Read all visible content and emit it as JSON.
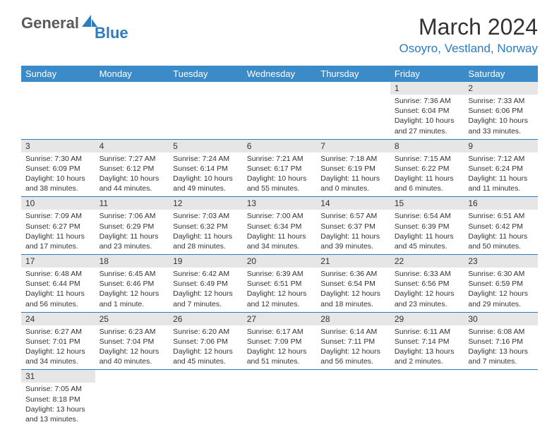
{
  "brand": {
    "general": "General",
    "blue": "Blue"
  },
  "title": "March 2024",
  "location": "Osoyro, Vestland, Norway",
  "colors": {
    "header_bg": "#3b8bc9",
    "accent": "#2d7bc0",
    "daynum_bg": "#e6e6e6",
    "text": "#333333",
    "logo_gray": "#5a5a5a"
  },
  "weekdays": [
    "Sunday",
    "Monday",
    "Tuesday",
    "Wednesday",
    "Thursday",
    "Friday",
    "Saturday"
  ],
  "weeks": [
    [
      null,
      null,
      null,
      null,
      null,
      {
        "n": "1",
        "sr": "Sunrise: 7:36 AM",
        "ss": "Sunset: 6:04 PM",
        "d1": "Daylight: 10 hours",
        "d2": "and 27 minutes."
      },
      {
        "n": "2",
        "sr": "Sunrise: 7:33 AM",
        "ss": "Sunset: 6:06 PM",
        "d1": "Daylight: 10 hours",
        "d2": "and 33 minutes."
      }
    ],
    [
      {
        "n": "3",
        "sr": "Sunrise: 7:30 AM",
        "ss": "Sunset: 6:09 PM",
        "d1": "Daylight: 10 hours",
        "d2": "and 38 minutes."
      },
      {
        "n": "4",
        "sr": "Sunrise: 7:27 AM",
        "ss": "Sunset: 6:12 PM",
        "d1": "Daylight: 10 hours",
        "d2": "and 44 minutes."
      },
      {
        "n": "5",
        "sr": "Sunrise: 7:24 AM",
        "ss": "Sunset: 6:14 PM",
        "d1": "Daylight: 10 hours",
        "d2": "and 49 minutes."
      },
      {
        "n": "6",
        "sr": "Sunrise: 7:21 AM",
        "ss": "Sunset: 6:17 PM",
        "d1": "Daylight: 10 hours",
        "d2": "and 55 minutes."
      },
      {
        "n": "7",
        "sr": "Sunrise: 7:18 AM",
        "ss": "Sunset: 6:19 PM",
        "d1": "Daylight: 11 hours",
        "d2": "and 0 minutes."
      },
      {
        "n": "8",
        "sr": "Sunrise: 7:15 AM",
        "ss": "Sunset: 6:22 PM",
        "d1": "Daylight: 11 hours",
        "d2": "and 6 minutes."
      },
      {
        "n": "9",
        "sr": "Sunrise: 7:12 AM",
        "ss": "Sunset: 6:24 PM",
        "d1": "Daylight: 11 hours",
        "d2": "and 11 minutes."
      }
    ],
    [
      {
        "n": "10",
        "sr": "Sunrise: 7:09 AM",
        "ss": "Sunset: 6:27 PM",
        "d1": "Daylight: 11 hours",
        "d2": "and 17 minutes."
      },
      {
        "n": "11",
        "sr": "Sunrise: 7:06 AM",
        "ss": "Sunset: 6:29 PM",
        "d1": "Daylight: 11 hours",
        "d2": "and 23 minutes."
      },
      {
        "n": "12",
        "sr": "Sunrise: 7:03 AM",
        "ss": "Sunset: 6:32 PM",
        "d1": "Daylight: 11 hours",
        "d2": "and 28 minutes."
      },
      {
        "n": "13",
        "sr": "Sunrise: 7:00 AM",
        "ss": "Sunset: 6:34 PM",
        "d1": "Daylight: 11 hours",
        "d2": "and 34 minutes."
      },
      {
        "n": "14",
        "sr": "Sunrise: 6:57 AM",
        "ss": "Sunset: 6:37 PM",
        "d1": "Daylight: 11 hours",
        "d2": "and 39 minutes."
      },
      {
        "n": "15",
        "sr": "Sunrise: 6:54 AM",
        "ss": "Sunset: 6:39 PM",
        "d1": "Daylight: 11 hours",
        "d2": "and 45 minutes."
      },
      {
        "n": "16",
        "sr": "Sunrise: 6:51 AM",
        "ss": "Sunset: 6:42 PM",
        "d1": "Daylight: 11 hours",
        "d2": "and 50 minutes."
      }
    ],
    [
      {
        "n": "17",
        "sr": "Sunrise: 6:48 AM",
        "ss": "Sunset: 6:44 PM",
        "d1": "Daylight: 11 hours",
        "d2": "and 56 minutes."
      },
      {
        "n": "18",
        "sr": "Sunrise: 6:45 AM",
        "ss": "Sunset: 6:46 PM",
        "d1": "Daylight: 12 hours",
        "d2": "and 1 minute."
      },
      {
        "n": "19",
        "sr": "Sunrise: 6:42 AM",
        "ss": "Sunset: 6:49 PM",
        "d1": "Daylight: 12 hours",
        "d2": "and 7 minutes."
      },
      {
        "n": "20",
        "sr": "Sunrise: 6:39 AM",
        "ss": "Sunset: 6:51 PM",
        "d1": "Daylight: 12 hours",
        "d2": "and 12 minutes."
      },
      {
        "n": "21",
        "sr": "Sunrise: 6:36 AM",
        "ss": "Sunset: 6:54 PM",
        "d1": "Daylight: 12 hours",
        "d2": "and 18 minutes."
      },
      {
        "n": "22",
        "sr": "Sunrise: 6:33 AM",
        "ss": "Sunset: 6:56 PM",
        "d1": "Daylight: 12 hours",
        "d2": "and 23 minutes."
      },
      {
        "n": "23",
        "sr": "Sunrise: 6:30 AM",
        "ss": "Sunset: 6:59 PM",
        "d1": "Daylight: 12 hours",
        "d2": "and 29 minutes."
      }
    ],
    [
      {
        "n": "24",
        "sr": "Sunrise: 6:27 AM",
        "ss": "Sunset: 7:01 PM",
        "d1": "Daylight: 12 hours",
        "d2": "and 34 minutes."
      },
      {
        "n": "25",
        "sr": "Sunrise: 6:23 AM",
        "ss": "Sunset: 7:04 PM",
        "d1": "Daylight: 12 hours",
        "d2": "and 40 minutes."
      },
      {
        "n": "26",
        "sr": "Sunrise: 6:20 AM",
        "ss": "Sunset: 7:06 PM",
        "d1": "Daylight: 12 hours",
        "d2": "and 45 minutes."
      },
      {
        "n": "27",
        "sr": "Sunrise: 6:17 AM",
        "ss": "Sunset: 7:09 PM",
        "d1": "Daylight: 12 hours",
        "d2": "and 51 minutes."
      },
      {
        "n": "28",
        "sr": "Sunrise: 6:14 AM",
        "ss": "Sunset: 7:11 PM",
        "d1": "Daylight: 12 hours",
        "d2": "and 56 minutes."
      },
      {
        "n": "29",
        "sr": "Sunrise: 6:11 AM",
        "ss": "Sunset: 7:14 PM",
        "d1": "Daylight: 13 hours",
        "d2": "and 2 minutes."
      },
      {
        "n": "30",
        "sr": "Sunrise: 6:08 AM",
        "ss": "Sunset: 7:16 PM",
        "d1": "Daylight: 13 hours",
        "d2": "and 7 minutes."
      }
    ],
    [
      {
        "n": "31",
        "sr": "Sunrise: 7:05 AM",
        "ss": "Sunset: 8:18 PM",
        "d1": "Daylight: 13 hours",
        "d2": "and 13 minutes."
      },
      null,
      null,
      null,
      null,
      null,
      null
    ]
  ]
}
